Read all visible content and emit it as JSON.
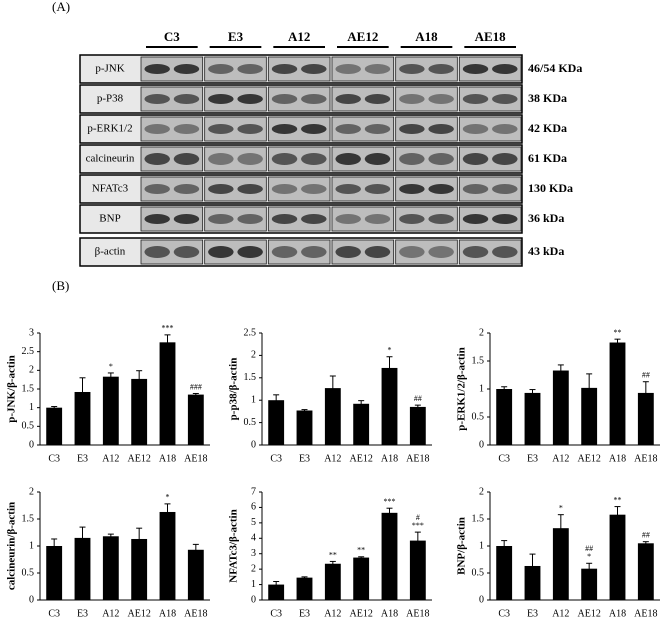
{
  "panel_a": {
    "label": "(A)",
    "groups": [
      "C3",
      "E3",
      "A12",
      "AE12",
      "A18",
      "AE18"
    ],
    "rows": [
      {
        "protein": "p-JNK",
        "size": "46/54 KDa"
      },
      {
        "protein": "p-P38",
        "size": "38 KDa"
      },
      {
        "protein": "p-ERK1/2",
        "size": "42 KDa"
      },
      {
        "protein": "calcineurin",
        "size": "61 KDa"
      },
      {
        "protein": "NFATc3",
        "size": "130 KDa"
      },
      {
        "protein": "BNP",
        "size": "36 kDa"
      },
      {
        "protein": "β-actin",
        "size": "43 kDa"
      }
    ]
  },
  "panel_b": {
    "label": "(B)"
  },
  "chart_data": [
    {
      "type": "bar",
      "ylabel": "p-JNK/β-actin",
      "categories": [
        "C3",
        "E3",
        "A12",
        "AE12",
        "A18",
        "AE18"
      ],
      "color": "#000000",
      "values": [
        1.0,
        1.42,
        1.83,
        1.77,
        2.75,
        1.35
      ],
      "errors": [
        0.03,
        0.38,
        0.1,
        0.22,
        0.2,
        0.03
      ],
      "annotations": [
        null,
        null,
        [
          "*"
        ],
        null,
        [
          "***"
        ],
        [
          "###"
        ]
      ],
      "ylim": [
        0,
        3
      ],
      "yticks": [
        0,
        0.5,
        1,
        1.5,
        2,
        2.5,
        3
      ]
    },
    {
      "type": "bar",
      "ylabel": "p-p38/β-actin",
      "categories": [
        "C3",
        "E3",
        "A12",
        "AE12",
        "A18",
        "AE18"
      ],
      "color": "#000000",
      "values": [
        1.0,
        0.77,
        1.27,
        0.92,
        1.72,
        0.85
      ],
      "errors": [
        0.12,
        0.02,
        0.27,
        0.07,
        0.25,
        0.04
      ],
      "annotations": [
        null,
        null,
        null,
        null,
        [
          "*"
        ],
        [
          "##"
        ]
      ],
      "ylim": [
        0,
        2.5
      ],
      "yticks": [
        0,
        0.5,
        1,
        1.5,
        2,
        2.5
      ]
    },
    {
      "type": "bar",
      "ylabel": "p-ERK1/2/β-actin",
      "categories": [
        "C3",
        "E3",
        "A12",
        "AE12",
        "A18",
        "AE18"
      ],
      "color": "#000000",
      "values": [
        1.0,
        0.93,
        1.33,
        1.02,
        1.83,
        0.93
      ],
      "errors": [
        0.04,
        0.06,
        0.1,
        0.25,
        0.06,
        0.2
      ],
      "annotations": [
        null,
        null,
        null,
        null,
        [
          "**"
        ],
        [
          "##"
        ]
      ],
      "ylim": [
        0,
        2
      ],
      "yticks": [
        0,
        0.5,
        1,
        1.5,
        2
      ]
    },
    {
      "type": "bar",
      "ylabel": "calcineurin/β-actin",
      "categories": [
        "C3",
        "E3",
        "A12",
        "AE12",
        "A18",
        "AE18"
      ],
      "color": "#000000",
      "values": [
        1.0,
        1.15,
        1.18,
        1.13,
        1.63,
        0.93
      ],
      "errors": [
        0.13,
        0.2,
        0.04,
        0.2,
        0.15,
        0.1
      ],
      "annotations": [
        null,
        null,
        null,
        null,
        [
          "*"
        ],
        null
      ],
      "ylim": [
        0,
        2
      ],
      "yticks": [
        0,
        0.5,
        1,
        1.5,
        2
      ]
    },
    {
      "type": "bar",
      "ylabel": "NFATc3/β-actin",
      "categories": [
        "C3",
        "E3",
        "A12",
        "AE12",
        "A18",
        "AE18"
      ],
      "color": "#000000",
      "values": [
        1.0,
        1.45,
        2.35,
        2.75,
        5.65,
        3.85
      ],
      "errors": [
        0.2,
        0.05,
        0.15,
        0.05,
        0.3,
        0.55
      ],
      "annotations": [
        null,
        null,
        [
          "**"
        ],
        [
          "**"
        ],
        [
          "***"
        ],
        [
          "#",
          "***"
        ]
      ],
      "ylim": [
        0,
        7
      ],
      "yticks": [
        0,
        1,
        2,
        3,
        4,
        5,
        6,
        7
      ]
    },
    {
      "type": "bar",
      "ylabel": "BNP/β-actin",
      "categories": [
        "C3",
        "E3",
        "A12",
        "AE12",
        "A18",
        "AE18"
      ],
      "color": "#000000",
      "values": [
        1.0,
        0.63,
        1.33,
        0.58,
        1.58,
        1.05
      ],
      "errors": [
        0.1,
        0.22,
        0.25,
        0.1,
        0.15,
        0.03
      ],
      "annotations": [
        null,
        null,
        [
          "*"
        ],
        [
          "##",
          "*"
        ],
        [
          "**"
        ],
        [
          "##"
        ]
      ],
      "ylim": [
        0,
        2
      ],
      "yticks": [
        0,
        0.5,
        1,
        1.5,
        2
      ]
    }
  ]
}
